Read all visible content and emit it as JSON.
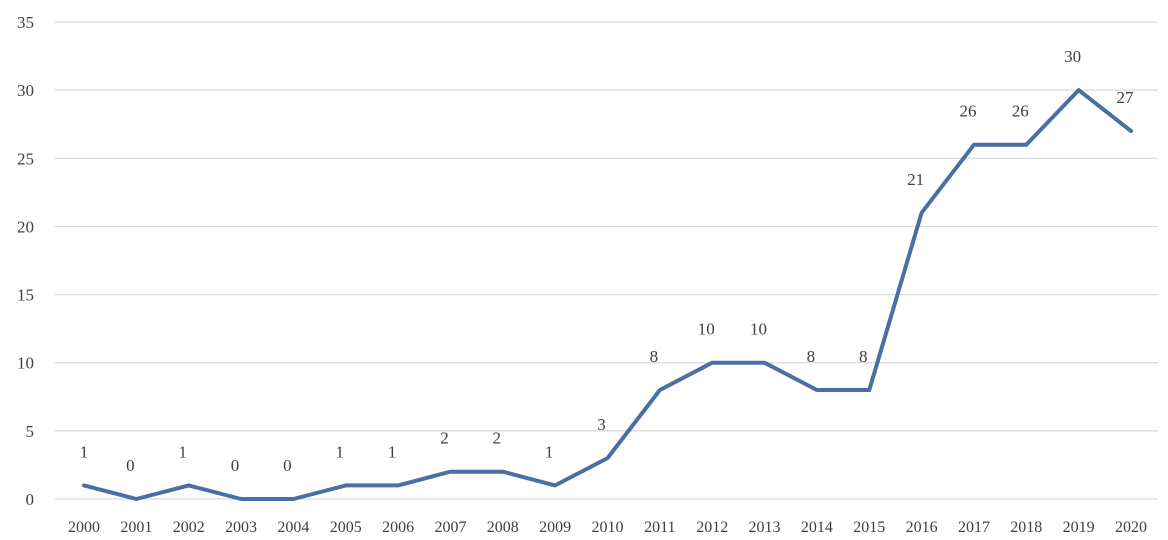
{
  "chart_data": {
    "type": "line",
    "title": "",
    "xlabel": "",
    "ylabel": "",
    "ylim": [
      0,
      35
    ],
    "yticks": [
      0,
      5,
      10,
      15,
      20,
      25,
      30,
      35
    ],
    "grid": true,
    "legend": "none",
    "categories": [
      "2000",
      "2001",
      "2002",
      "2003",
      "2004",
      "2005",
      "2006",
      "2007",
      "2008",
      "2009",
      "2010",
      "2011",
      "2012",
      "2013",
      "2014",
      "2015",
      "2016",
      "2017",
      "2018",
      "2019",
      "2020"
    ],
    "series": [
      {
        "values": [
          1,
          0,
          1,
          0,
          0,
          1,
          1,
          2,
          2,
          1,
          3,
          8,
          10,
          10,
          8,
          8,
          21,
          26,
          26,
          30,
          27
        ],
        "labels": [
          "1",
          "0",
          "1",
          "0",
          "0",
          "1",
          "1",
          "2",
          "2",
          "1",
          "3",
          "8",
          "10",
          "10",
          "8",
          "8",
          "21",
          "26",
          "26",
          "30",
          "27"
        ],
        "color": "#4a6fa5"
      }
    ],
    "colors": {
      "line": "#4a6fa5",
      "grid": "#d9d9d9",
      "text": "#404040"
    }
  }
}
